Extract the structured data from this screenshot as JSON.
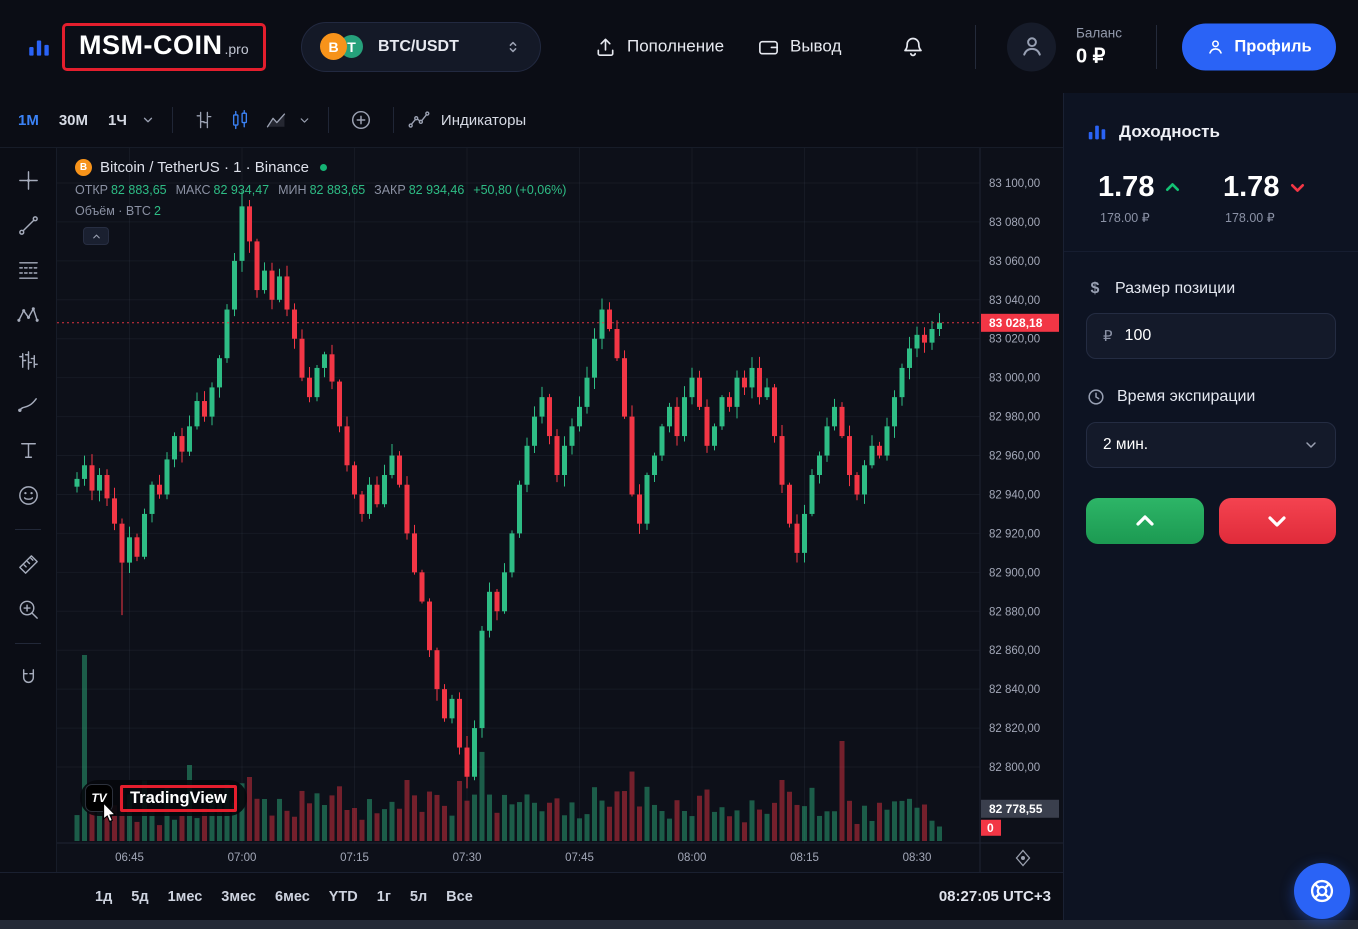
{
  "header": {
    "logo_text": "MSM-COIN",
    "logo_suffix": ".pro",
    "pair": "BTC/USDT",
    "deposit": "Пополнение",
    "withdraw": "Вывод",
    "balance_label": "Баланс",
    "balance_value": "0 ₽",
    "profile": "Профиль"
  },
  "toolbar": {
    "timeframes": [
      "1M",
      "30M",
      "1Ч"
    ],
    "active_timeframe": "1M",
    "indicators": "Индикаторы"
  },
  "drawing_tools": [
    "crosshair",
    "trend-line",
    "fib-retracement",
    "xabcd-pattern",
    "bars-pattern",
    "brush",
    "text",
    "emoji",
    "measure",
    "zoom-in",
    "magnet"
  ],
  "legend": {
    "title": "Bitcoin / TetherUS · 1 · Binance",
    "ohlc": [
      {
        "label": "ОТКР",
        "value": "82 883,65"
      },
      {
        "label": "МАКС",
        "value": "82 934,47"
      },
      {
        "label": "МИН",
        "value": "82 883,65"
      },
      {
        "label": "ЗАКР",
        "value": "82 934,46"
      }
    ],
    "change": "+50,80 (+0,06%)",
    "volume_label": "Объём · BTC",
    "volume_value": "2"
  },
  "watermark": {
    "mark": "TV",
    "text": "TradingView"
  },
  "chart_data": {
    "type": "candlestick",
    "symbol": "BTC/USDT",
    "exchange": "Binance",
    "interval": "1m",
    "start_time": "06:38",
    "end_time": "08:33",
    "first_open": 82944,
    "closes": [
      82948,
      82955,
      82942,
      82950,
      82938,
      82925,
      82905,
      82918,
      82908,
      82930,
      82945,
      82940,
      82958,
      82970,
      82962,
      82975,
      82988,
      82980,
      82995,
      83010,
      83035,
      83060,
      83088,
      83070,
      83045,
      83055,
      83040,
      83052,
      83035,
      83020,
      83000,
      82990,
      83005,
      83012,
      82998,
      82975,
      82955,
      82940,
      82930,
      82945,
      82935,
      82950,
      82960,
      82945,
      82920,
      82900,
      82885,
      82860,
      82840,
      82825,
      82835,
      82810,
      82795,
      82820,
      82870,
      82890,
      82880,
      82900,
      82920,
      82945,
      82965,
      82980,
      82990,
      82970,
      82950,
      82965,
      82975,
      82985,
      83000,
      83020,
      83035,
      83025,
      83010,
      82980,
      82940,
      82925,
      82950,
      82960,
      82975,
      82985,
      82970,
      82990,
      83000,
      82985,
      82965,
      82975,
      82990,
      82985,
      83000,
      82995,
      83005,
      82990,
      82995,
      82970,
      82945,
      82925,
      82910,
      82930,
      82950,
      82960,
      82975,
      82985,
      82970,
      82950,
      82940,
      82955,
      82965,
      82960,
      82975,
      82990,
      83005,
      83015,
      83022,
      83018,
      83025,
      83028.18
    ],
    "session_high": 83096,
    "session_low": 82789,
    "x_ticks": [
      "06:45",
      "07:00",
      "07:15",
      "07:30",
      "07:45",
      "08:00",
      "08:15",
      "08:30"
    ],
    "y_ticks": [
      "83 100,00",
      "83 080,00",
      "83 060,00",
      "83 040,00",
      "83 020,00",
      "83 000,00",
      "82 980,00",
      "82 960,00",
      "82 940,00",
      "82 920,00",
      "82 900,00",
      "82 880,00",
      "82 860,00",
      "82 840,00",
      "82 820,00",
      "82 800,00"
    ],
    "y_tick_top_value": 83100,
    "y_tick_step": 20,
    "last_price": "83 028,18",
    "last_price_value": 83028.18,
    "lower_axis_label": "82 778,55",
    "lower_label_value": 82778.55,
    "volume_axis_label": "0"
  },
  "bottom_bar": {
    "ranges": [
      "1д",
      "5д",
      "1мес",
      "3мес",
      "6мес",
      "YTD",
      "1г",
      "5л",
      "Все"
    ],
    "clock": "08:27:05 UTC+3"
  },
  "side": {
    "profit_title": "Доходность",
    "profit_up_multiplier": "1.78",
    "profit_up_amount": "178.00 ₽",
    "profit_down_multiplier": "1.78",
    "profit_down_amount": "178.00 ₽",
    "position_size_label": "Размер позиции",
    "dollar_symbol": "$",
    "currency_symbol": "₽",
    "position_size_value": "100",
    "expiration_label": "Время экспирации",
    "expiration_value": "2 мин."
  },
  "colors": {
    "accent_blue": "#2a63f6",
    "green": "#2ebd85",
    "red": "#f23645",
    "logo_border": "#e41e2d"
  }
}
